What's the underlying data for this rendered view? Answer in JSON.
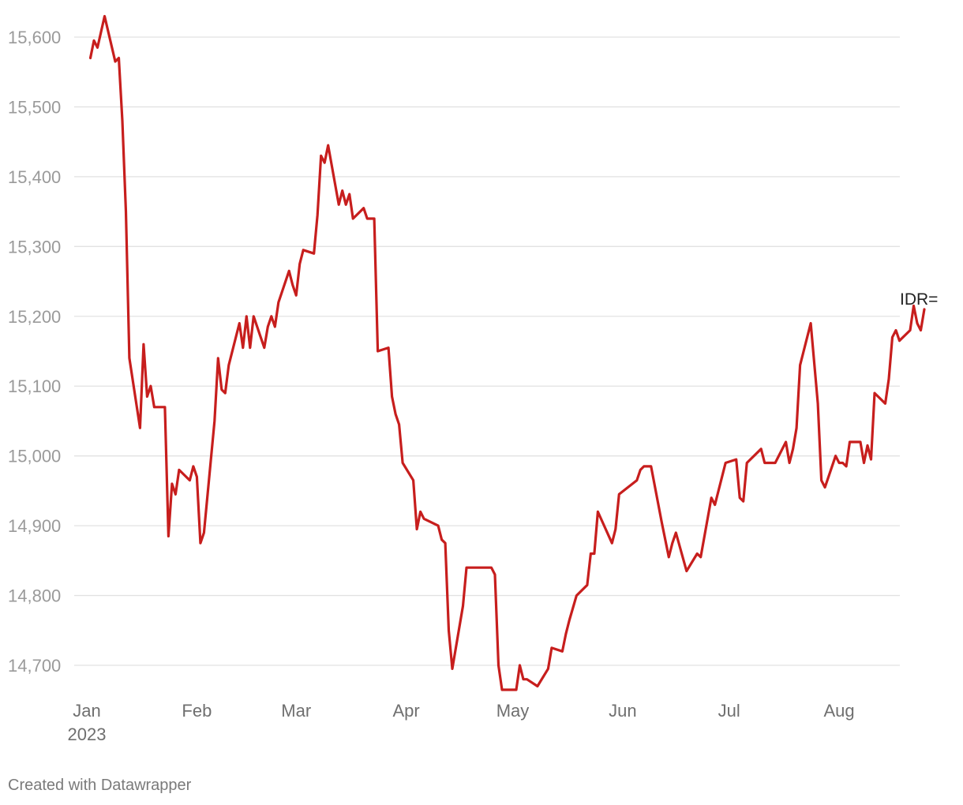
{
  "chart_data": {
    "type": "line",
    "title": "",
    "xlabel": "",
    "ylabel": "",
    "x_axis": {
      "type": "date",
      "range": [
        "2023-01-01",
        "2023-08-15"
      ],
      "ticks": [
        {
          "date": "2023-01-01",
          "label": "Jan",
          "sub": "2023"
        },
        {
          "date": "2023-02-01",
          "label": "Feb",
          "sub": ""
        },
        {
          "date": "2023-03-01",
          "label": "Mar",
          "sub": ""
        },
        {
          "date": "2023-04-01",
          "label": "Apr",
          "sub": ""
        },
        {
          "date": "2023-05-01",
          "label": "May",
          "sub": ""
        },
        {
          "date": "2023-06-01",
          "label": "Jun",
          "sub": ""
        },
        {
          "date": "2023-07-01",
          "label": "Jul",
          "sub": ""
        },
        {
          "date": "2023-08-01",
          "label": "Aug",
          "sub": ""
        }
      ]
    },
    "y_axis": {
      "range": [
        14670,
        15620
      ],
      "ticks": [
        {
          "value": 14700,
          "label": "14,700"
        },
        {
          "value": 14800,
          "label": "14,800"
        },
        {
          "value": 14900,
          "label": "14,900"
        },
        {
          "value": 15000,
          "label": "15,000"
        },
        {
          "value": 15100,
          "label": "15,100"
        },
        {
          "value": 15200,
          "label": "15,200"
        },
        {
          "value": 15300,
          "label": "15,300"
        },
        {
          "value": 15400,
          "label": "15,400"
        },
        {
          "value": 15500,
          "label": "15,500"
        },
        {
          "value": 15600,
          "label": "15,600"
        }
      ]
    },
    "grid": true,
    "series": [
      {
        "name": "IDR=",
        "color": "#c71e1d",
        "points": [
          [
            "2023-01-02",
            15570
          ],
          [
            "2023-01-03",
            15595
          ],
          [
            "2023-01-04",
            15585
          ],
          [
            "2023-01-06",
            15630
          ],
          [
            "2023-01-09",
            15565
          ],
          [
            "2023-01-10",
            15570
          ],
          [
            "2023-01-11",
            15480
          ],
          [
            "2023-01-12",
            15350
          ],
          [
            "2023-01-13",
            15140
          ],
          [
            "2023-01-16",
            15040
          ],
          [
            "2023-01-17",
            15160
          ],
          [
            "2023-01-18",
            15085
          ],
          [
            "2023-01-19",
            15100
          ],
          [
            "2023-01-20",
            15070
          ],
          [
            "2023-01-23",
            15070
          ],
          [
            "2023-01-24",
            14885
          ],
          [
            "2023-01-25",
            14960
          ],
          [
            "2023-01-26",
            14945
          ],
          [
            "2023-01-27",
            14980
          ],
          [
            "2023-01-30",
            14965
          ],
          [
            "2023-01-31",
            14985
          ],
          [
            "2023-02-01",
            14970
          ],
          [
            "2023-02-02",
            14875
          ],
          [
            "2023-02-03",
            14890
          ],
          [
            "2023-02-06",
            15050
          ],
          [
            "2023-02-07",
            15140
          ],
          [
            "2023-02-08",
            15095
          ],
          [
            "2023-02-09",
            15090
          ],
          [
            "2023-02-10",
            15130
          ],
          [
            "2023-02-13",
            15190
          ],
          [
            "2023-02-14",
            15155
          ],
          [
            "2023-02-15",
            15200
          ],
          [
            "2023-02-16",
            15155
          ],
          [
            "2023-02-17",
            15200
          ],
          [
            "2023-02-20",
            15155
          ],
          [
            "2023-02-21",
            15185
          ],
          [
            "2023-02-22",
            15200
          ],
          [
            "2023-02-23",
            15185
          ],
          [
            "2023-02-24",
            15220
          ],
          [
            "2023-02-27",
            15265
          ],
          [
            "2023-02-28",
            15245
          ],
          [
            "2023-03-01",
            15230
          ],
          [
            "2023-03-02",
            15275
          ],
          [
            "2023-03-03",
            15295
          ],
          [
            "2023-03-06",
            15290
          ],
          [
            "2023-03-07",
            15345
          ],
          [
            "2023-03-08",
            15430
          ],
          [
            "2023-03-09",
            15420
          ],
          [
            "2023-03-10",
            15445
          ],
          [
            "2023-03-13",
            15360
          ],
          [
            "2023-03-14",
            15380
          ],
          [
            "2023-03-15",
            15360
          ],
          [
            "2023-03-16",
            15375
          ],
          [
            "2023-03-17",
            15340
          ],
          [
            "2023-03-20",
            15355
          ],
          [
            "2023-03-21",
            15340
          ],
          [
            "2023-03-23",
            15340
          ],
          [
            "2023-03-24",
            15150
          ],
          [
            "2023-03-27",
            15155
          ],
          [
            "2023-03-28",
            15085
          ],
          [
            "2023-03-29",
            15060
          ],
          [
            "2023-03-30",
            15045
          ],
          [
            "2023-03-31",
            14990
          ],
          [
            "2023-04-03",
            14965
          ],
          [
            "2023-04-04",
            14895
          ],
          [
            "2023-04-05",
            14920
          ],
          [
            "2023-04-06",
            14910
          ],
          [
            "2023-04-10",
            14900
          ],
          [
            "2023-04-11",
            14880
          ],
          [
            "2023-04-12",
            14875
          ],
          [
            "2023-04-13",
            14750
          ],
          [
            "2023-04-14",
            14695
          ],
          [
            "2023-04-17",
            14785
          ],
          [
            "2023-04-18",
            14840
          ],
          [
            "2023-04-25",
            14840
          ],
          [
            "2023-04-26",
            14830
          ],
          [
            "2023-04-27",
            14700
          ],
          [
            "2023-04-28",
            14665
          ],
          [
            "2023-05-02",
            14665
          ],
          [
            "2023-05-03",
            14700
          ],
          [
            "2023-05-04",
            14680
          ],
          [
            "2023-05-05",
            14680
          ],
          [
            "2023-05-08",
            14670
          ],
          [
            "2023-05-11",
            14695
          ],
          [
            "2023-05-12",
            14725
          ],
          [
            "2023-05-15",
            14720
          ],
          [
            "2023-05-16",
            14745
          ],
          [
            "2023-05-17",
            14765
          ],
          [
            "2023-05-19",
            14800
          ],
          [
            "2023-05-22",
            14815
          ],
          [
            "2023-05-23",
            14860
          ],
          [
            "2023-05-24",
            14860
          ],
          [
            "2023-05-25",
            14920
          ],
          [
            "2023-05-29",
            14875
          ],
          [
            "2023-05-30",
            14895
          ],
          [
            "2023-05-31",
            14945
          ],
          [
            "2023-06-05",
            14965
          ],
          [
            "2023-06-06",
            14980
          ],
          [
            "2023-06-07",
            14985
          ],
          [
            "2023-06-09",
            14985
          ],
          [
            "2023-06-12",
            14905
          ],
          [
            "2023-06-14",
            14855
          ],
          [
            "2023-06-15",
            14875
          ],
          [
            "2023-06-16",
            14890
          ],
          [
            "2023-06-19",
            14835
          ],
          [
            "2023-06-22",
            14860
          ],
          [
            "2023-06-23",
            14855
          ],
          [
            "2023-06-26",
            14940
          ],
          [
            "2023-06-27",
            14930
          ],
          [
            "2023-06-28",
            14950
          ],
          [
            "2023-06-29",
            14970
          ],
          [
            "2023-06-30",
            14990
          ],
          [
            "2023-07-03",
            14995
          ],
          [
            "2023-07-04",
            14940
          ],
          [
            "2023-07-05",
            14935
          ],
          [
            "2023-07-06",
            14990
          ],
          [
            "2023-07-10",
            15010
          ],
          [
            "2023-07-11",
            14990
          ],
          [
            "2023-07-14",
            14990
          ],
          [
            "2023-07-17",
            15020
          ],
          [
            "2023-07-18",
            14990
          ],
          [
            "2023-07-19",
            15010
          ],
          [
            "2023-07-20",
            15040
          ],
          [
            "2023-07-21",
            15130
          ],
          [
            "2023-07-24",
            15190
          ],
          [
            "2023-07-26",
            15075
          ],
          [
            "2023-07-27",
            14965
          ],
          [
            "2023-07-28",
            14955
          ],
          [
            "2023-07-31",
            15000
          ],
          [
            "2023-08-01",
            14990
          ],
          [
            "2023-08-02",
            14990
          ],
          [
            "2023-08-03",
            14985
          ],
          [
            "2023-08-04",
            15020
          ],
          [
            "2023-08-07",
            15020
          ],
          [
            "2023-08-08",
            14990
          ],
          [
            "2023-08-09",
            15015
          ],
          [
            "2023-08-10",
            14995
          ],
          [
            "2023-08-11",
            15090
          ],
          [
            "2023-08-14",
            15075
          ],
          [
            "2023-08-15",
            15110
          ],
          [
            "2023-08-16",
            15170
          ],
          [
            "2023-08-17",
            15180
          ],
          [
            "2023-08-18",
            15165
          ],
          [
            "2023-08-21",
            15180
          ],
          [
            "2023-08-22",
            15215
          ],
          [
            "2023-08-23",
            15190
          ],
          [
            "2023-08-24",
            15180
          ],
          [
            "2023-08-25",
            15210
          ]
        ]
      }
    ]
  },
  "footer": {
    "credit": "Created with Datawrapper"
  }
}
